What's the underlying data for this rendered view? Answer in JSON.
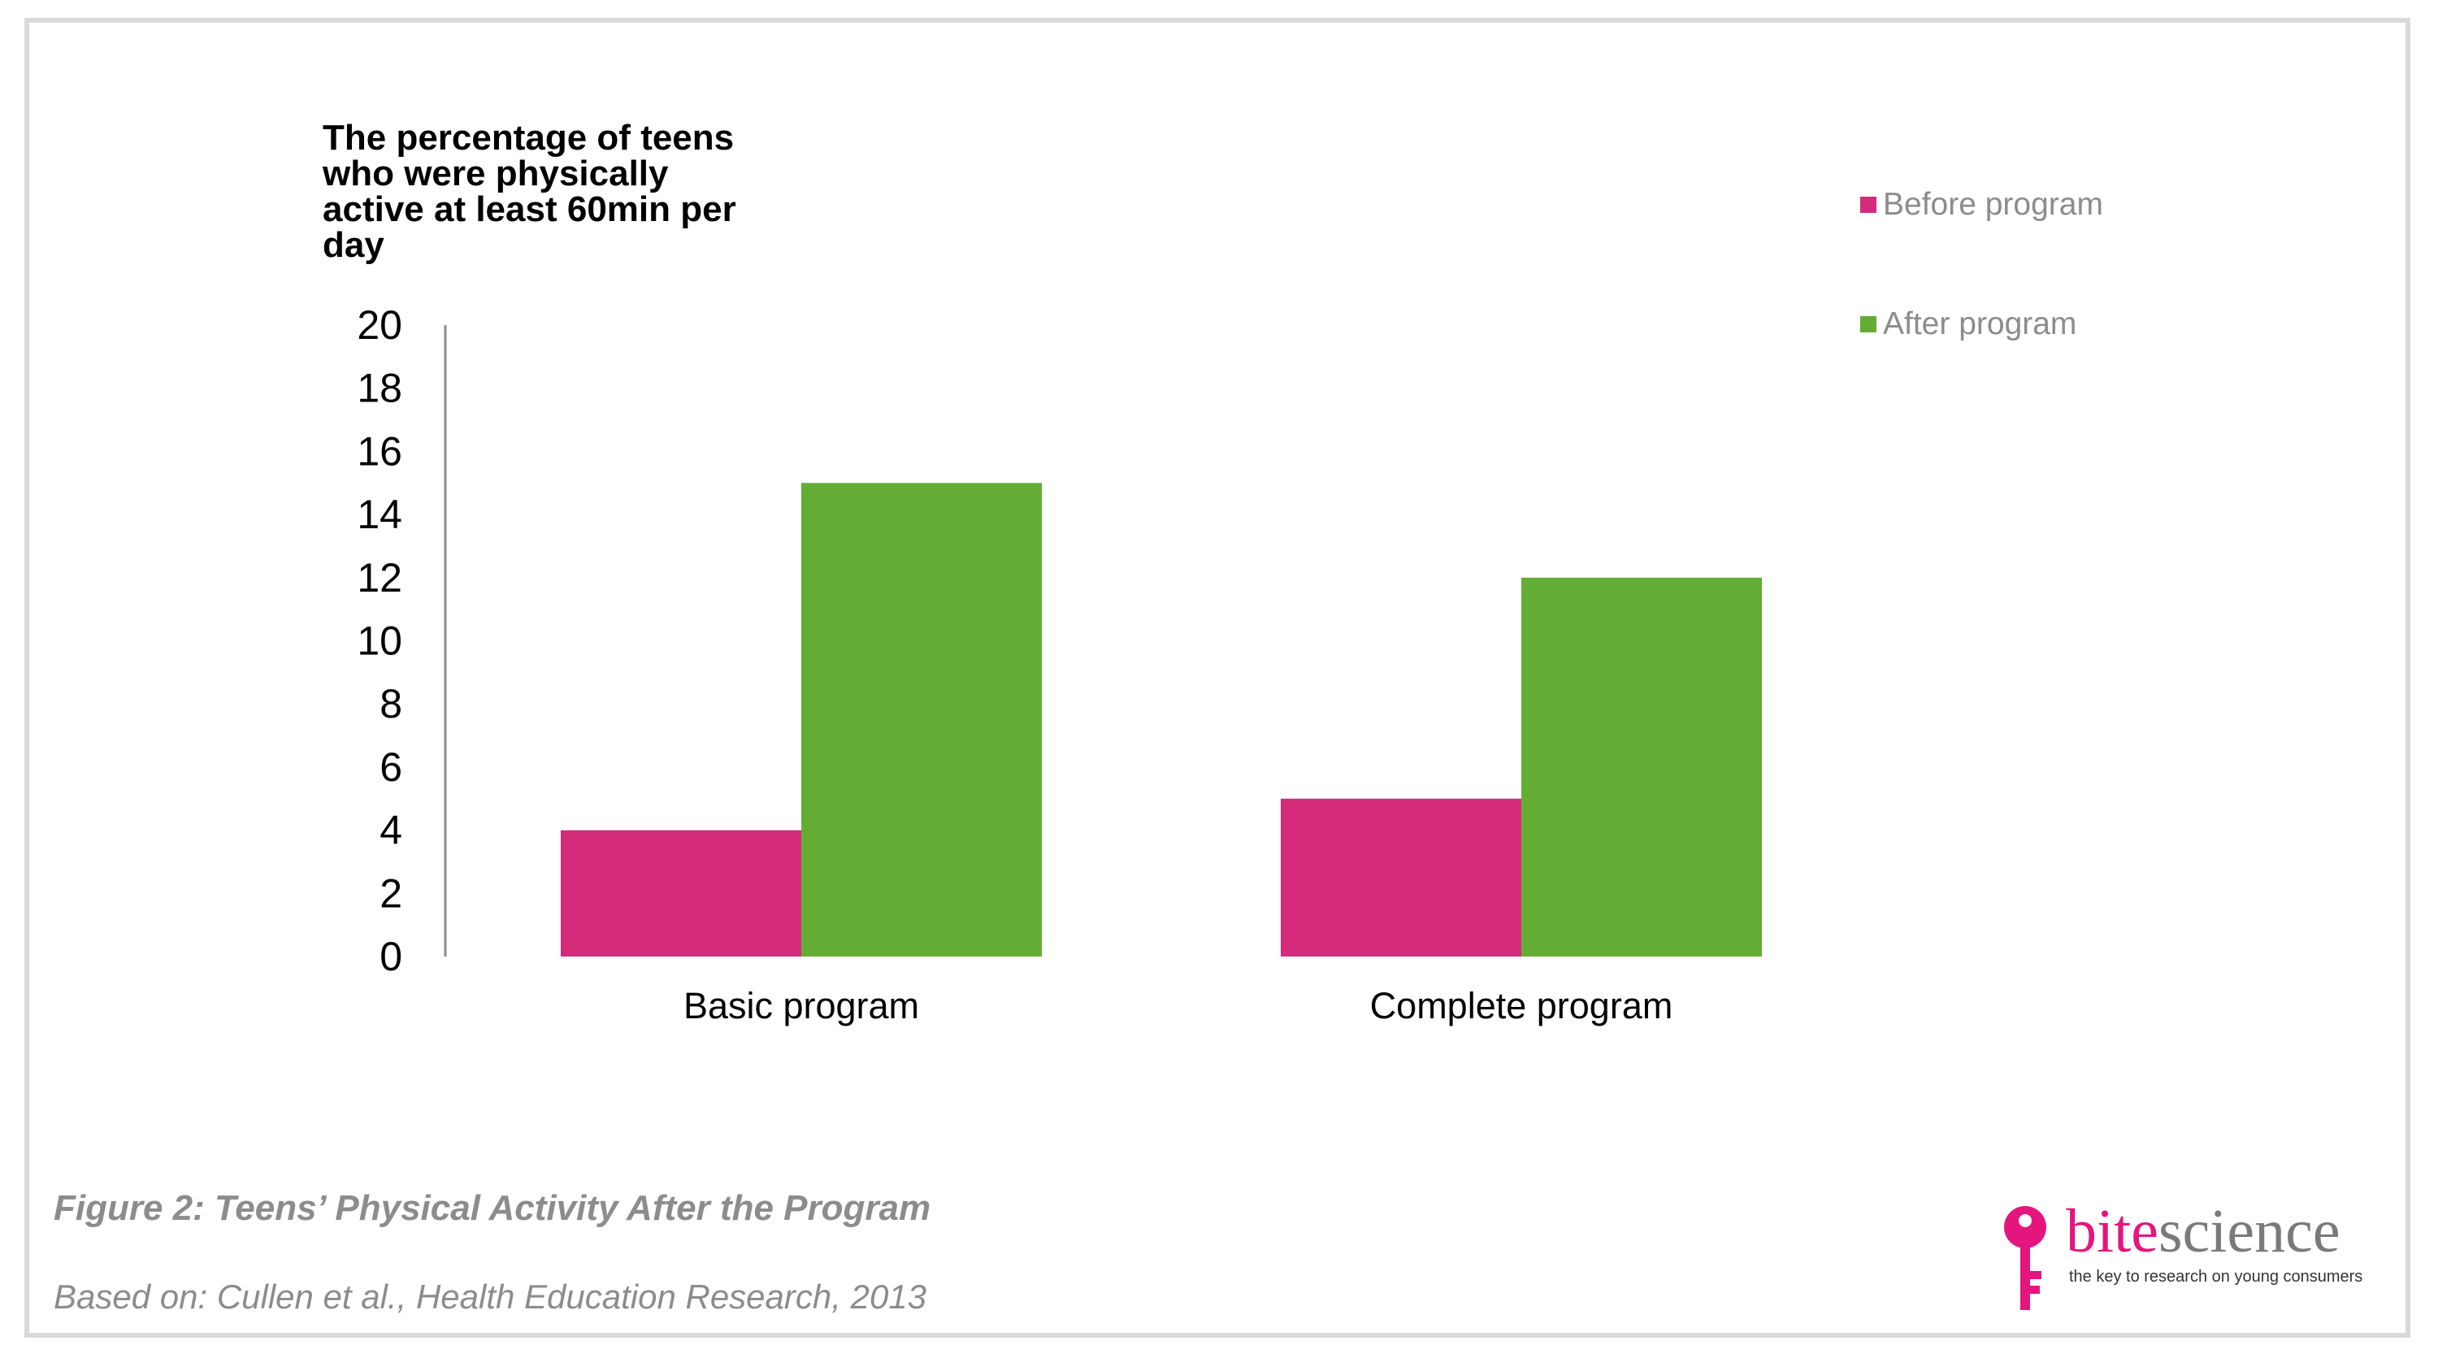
{
  "chart_data": {
    "type": "bar",
    "title": "",
    "ylabel": "The percentage of teens who were physically active at least 60min per day",
    "xlabel": "",
    "categories": [
      "Basic program",
      "Complete program"
    ],
    "series": [
      {
        "name": "Before program",
        "values": [
          4,
          5
        ],
        "color": "#d42b7a"
      },
      {
        "name": "After program",
        "values": [
          15,
          12
        ],
        "color": "#63ad34"
      }
    ],
    "ylim": [
      0,
      20
    ],
    "yticks": [
      0,
      2,
      4,
      6,
      8,
      10,
      12,
      14,
      16,
      18,
      20
    ],
    "grid": false,
    "legend": "top-right"
  },
  "caption": "Figure 2: Teens’ Physical Activity After the Program",
  "source": "Based on: Cullen et al., Health Education Research, 2013",
  "logo": {
    "name_part1": "bite",
    "name_part2": "science",
    "tagline": "the key to research on young consumers",
    "color_pink": "#e5157e",
    "color_gray": "#7a7a7a"
  }
}
